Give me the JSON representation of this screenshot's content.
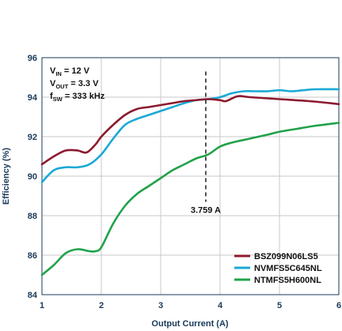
{
  "chart_data": {
    "type": "line",
    "xlabel": "Output Current (A)",
    "ylabel": "Efficiency (%)",
    "xlim": [
      1,
      6
    ],
    "ylim": [
      84,
      96
    ],
    "x_ticks": [
      "1",
      "2",
      "3",
      "4",
      "5",
      "6"
    ],
    "y_ticks": [
      "84",
      "86",
      "88",
      "90",
      "92",
      "94",
      "96"
    ],
    "grid": true,
    "legend_position": "bottom-right",
    "conditions": [
      {
        "main": "V",
        "sub": "IN",
        "rest": " = 12 V"
      },
      {
        "main": "V",
        "sub": "OUT",
        "rest": " = 3.3 V"
      },
      {
        "main": "f",
        "sub": "SW",
        "rest": " = 333 kHz"
      }
    ],
    "annotation": {
      "label": "3.759 A",
      "x": 3.759
    },
    "series": [
      {
        "name": "BSZ099N06LS5",
        "color": "#8c1a2e",
        "points": [
          [
            1.0,
            90.6
          ],
          [
            1.2,
            91.0
          ],
          [
            1.4,
            91.3
          ],
          [
            1.6,
            91.3
          ],
          [
            1.75,
            91.2
          ],
          [
            1.9,
            91.6
          ],
          [
            2.0,
            92.0
          ],
          [
            2.2,
            92.6
          ],
          [
            2.4,
            93.1
          ],
          [
            2.6,
            93.4
          ],
          [
            2.8,
            93.5
          ],
          [
            3.0,
            93.6
          ],
          [
            3.2,
            93.7
          ],
          [
            3.4,
            93.8
          ],
          [
            3.6,
            93.85
          ],
          [
            3.8,
            93.9
          ],
          [
            4.0,
            93.85
          ],
          [
            4.1,
            93.8
          ],
          [
            4.3,
            94.05
          ],
          [
            4.5,
            94.0
          ],
          [
            5.0,
            93.9
          ],
          [
            5.5,
            93.8
          ],
          [
            6.0,
            93.65
          ]
        ]
      },
      {
        "name": "NVMFS5C645NL",
        "color": "#1aa9d6",
        "points": [
          [
            1.0,
            89.7
          ],
          [
            1.2,
            90.3
          ],
          [
            1.4,
            90.45
          ],
          [
            1.6,
            90.45
          ],
          [
            1.8,
            90.6
          ],
          [
            2.0,
            91.1
          ],
          [
            2.2,
            91.9
          ],
          [
            2.4,
            92.6
          ],
          [
            2.6,
            92.9
          ],
          [
            2.8,
            93.1
          ],
          [
            3.0,
            93.3
          ],
          [
            3.2,
            93.5
          ],
          [
            3.4,
            93.7
          ],
          [
            3.6,
            93.85
          ],
          [
            3.8,
            93.9
          ],
          [
            4.0,
            94.0
          ],
          [
            4.2,
            94.2
          ],
          [
            4.4,
            94.3
          ],
          [
            4.6,
            94.3
          ],
          [
            4.8,
            94.3
          ],
          [
            5.0,
            94.35
          ],
          [
            5.2,
            94.3
          ],
          [
            5.4,
            94.35
          ],
          [
            5.6,
            94.4
          ],
          [
            6.0,
            94.4
          ]
        ]
      },
      {
        "name": "NTMFS5H600NL",
        "color": "#21a24a",
        "points": [
          [
            1.0,
            85.0
          ],
          [
            1.2,
            85.5
          ],
          [
            1.4,
            86.1
          ],
          [
            1.6,
            86.3
          ],
          [
            1.8,
            86.2
          ],
          [
            1.9,
            86.2
          ],
          [
            2.0,
            86.4
          ],
          [
            2.2,
            87.6
          ],
          [
            2.4,
            88.5
          ],
          [
            2.6,
            89.1
          ],
          [
            2.8,
            89.5
          ],
          [
            3.0,
            89.9
          ],
          [
            3.2,
            90.3
          ],
          [
            3.4,
            90.6
          ],
          [
            3.6,
            90.9
          ],
          [
            3.8,
            91.1
          ],
          [
            4.0,
            91.5
          ],
          [
            4.2,
            91.7
          ],
          [
            4.5,
            91.9
          ],
          [
            4.8,
            92.1
          ],
          [
            5.0,
            92.25
          ],
          [
            5.3,
            92.4
          ],
          [
            5.6,
            92.55
          ],
          [
            6.0,
            92.7
          ]
        ]
      }
    ]
  }
}
